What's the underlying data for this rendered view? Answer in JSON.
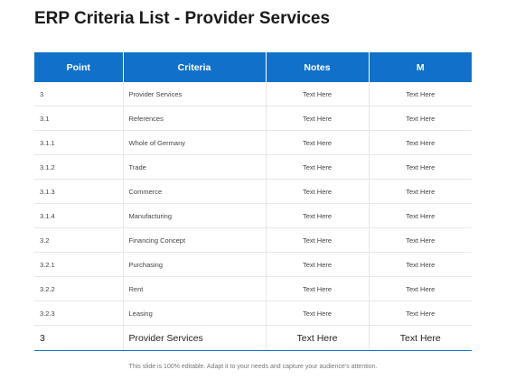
{
  "title": "ERP Criteria List - Provider Services",
  "table": {
    "headers": [
      "Point",
      "Criteria",
      "Notes",
      "M"
    ],
    "rows": [
      [
        "3",
        "Provider Services",
        "Text Here",
        "Text Here"
      ],
      [
        "3.1",
        "References",
        "Text Here",
        "Text Here"
      ],
      [
        "3.1.1",
        "Whole of Germany",
        "Text Here",
        "Text Here"
      ],
      [
        "3.1.2",
        "Trade",
        "Text Here",
        "Text Here"
      ],
      [
        "3.1.3",
        "Commerce",
        "Text Here",
        "Text Here"
      ],
      [
        "3.1.4",
        "Manufacturing",
        "Text Here",
        "Text Here"
      ],
      [
        "3.2",
        "Financing Concept",
        "Text Here",
        "Text Here"
      ],
      [
        "3.2.1",
        "Purchasing",
        "Text Here",
        "Text Here"
      ],
      [
        "3.2.2",
        "Rent",
        "Text Here",
        "Text Here"
      ],
      [
        "3.2.3",
        "Leasing",
        "Text Here",
        "Text Here"
      ]
    ],
    "summary": [
      "3",
      "Provider Services",
      "Text Here",
      "Text Here"
    ]
  },
  "footer_note": "This slide is 100% editable. Adapt it to your needs and capture your audience's attention.",
  "colors": {
    "header_bg": "#1170c9",
    "header_text": "#ffffff",
    "rule": "#e7e7e7"
  }
}
